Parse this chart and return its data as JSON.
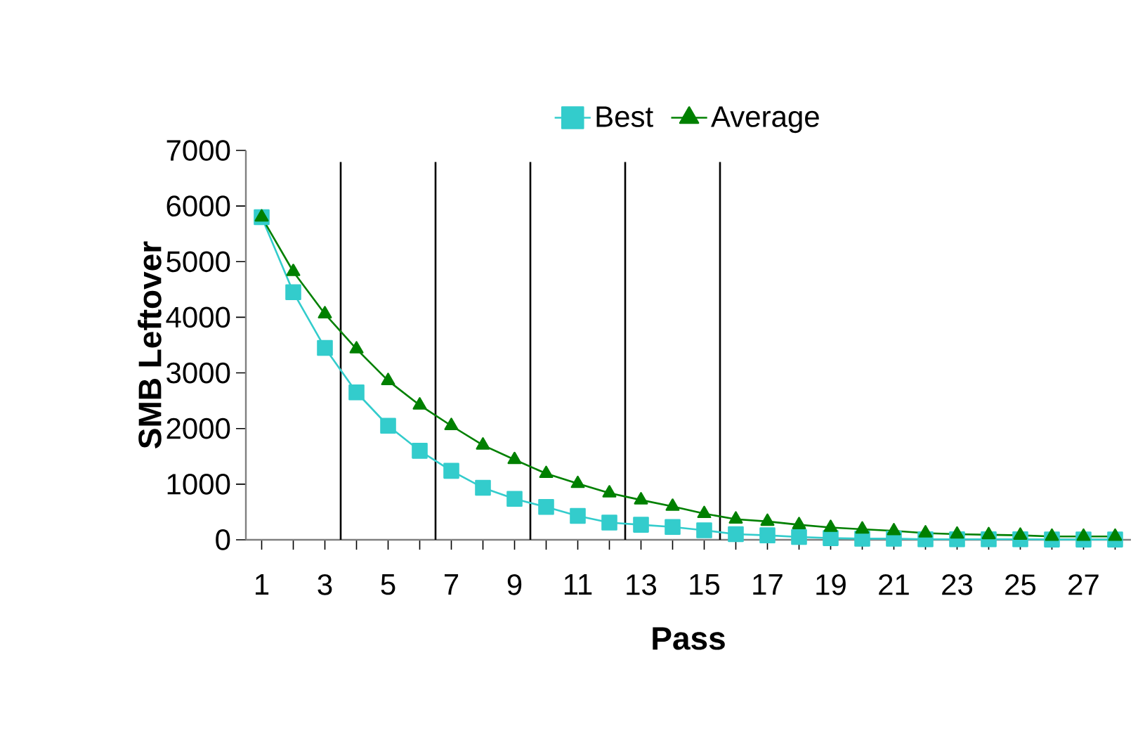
{
  "chart_data": {
    "type": "line",
    "xlabel": "Pass",
    "ylabel": "SMB Leftover",
    "x": [
      1,
      2,
      3,
      4,
      5,
      6,
      7,
      8,
      9,
      10,
      11,
      12,
      13,
      14,
      15,
      16,
      17,
      18,
      19,
      20,
      21,
      22,
      23,
      24,
      25,
      26,
      27,
      28
    ],
    "series": [
      {
        "name": "Best",
        "color": "#33cccc",
        "marker": "square",
        "values": [
          5800,
          4450,
          3450,
          2650,
          2050,
          1600,
          1240,
          935,
          735,
          590,
          430,
          310,
          270,
          230,
          170,
          100,
          80,
          50,
          30,
          20,
          20,
          10,
          10,
          10,
          10,
          5,
          5,
          5
        ]
      },
      {
        "name": "Average",
        "color": "#008000",
        "marker": "triangle",
        "values": [
          5800,
          4820,
          4060,
          3430,
          2860,
          2420,
          2050,
          1700,
          1440,
          1190,
          1010,
          840,
          715,
          600,
          470,
          370,
          330,
          270,
          220,
          190,
          160,
          120,
          100,
          90,
          80,
          60,
          60,
          60
        ]
      }
    ],
    "xlim": [
      0.5,
      28.5
    ],
    "xticks": [
      1,
      {
        "value": 2,
        "label": null
      },
      3,
      {
        "value": 4,
        "label": null
      },
      5,
      {
        "value": 6,
        "label": null
      },
      7,
      {
        "value": 8,
        "label": null
      },
      9,
      {
        "value": 10,
        "label": null
      },
      11,
      {
        "value": 12,
        "label": null
      },
      13,
      {
        "value": 14,
        "label": null
      },
      15,
      {
        "value": 16,
        "label": null
      },
      17,
      {
        "value": 18,
        "label": null
      },
      19,
      {
        "value": 20,
        "label": null
      },
      21,
      {
        "value": 22,
        "label": null
      },
      23,
      {
        "value": 24,
        "label": null
      },
      25,
      {
        "value": 26,
        "label": null
      },
      27,
      {
        "value": 28,
        "label": null
      }
    ],
    "ylim": [
      0,
      7000
    ],
    "yticks": [
      0,
      1000,
      2000,
      3000,
      4000,
      5000,
      6000,
      7000
    ],
    "ref_lines": [
      {
        "axis": "x",
        "value": 3.5,
        "color": "#000000"
      },
      {
        "axis": "x",
        "value": 6.5,
        "color": "#000000"
      },
      {
        "axis": "x",
        "value": 9.5,
        "color": "#000000"
      },
      {
        "axis": "x",
        "value": 12.5,
        "color": "#000000"
      },
      {
        "axis": "x",
        "value": 15.5,
        "color": "#000000"
      }
    ],
    "grid": false,
    "legend": "top",
    "line_style": "solid"
  }
}
